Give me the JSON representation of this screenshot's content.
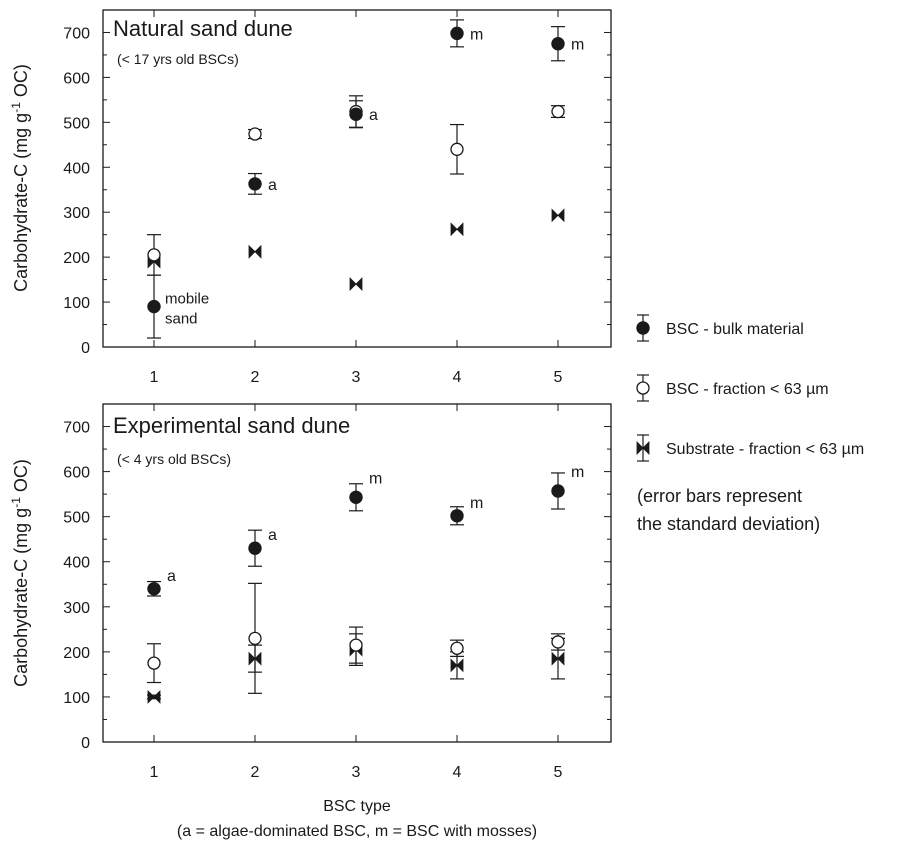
{
  "chart_data": [
    {
      "type": "scatter",
      "title": "Natural sand dune",
      "subtitle": "(< 17 yrs old BSCs)",
      "ylabel": "Carbohydrate-C (mg g",
      "ylabel_sup": "-1",
      "ylabel_tail": " OC)",
      "xlabel": "",
      "categories": [
        1,
        2,
        3,
        4,
        5
      ],
      "ylim": [
        0,
        750
      ],
      "yticks": [
        0,
        100,
        200,
        300,
        400,
        500,
        600,
        700
      ],
      "grid": false,
      "series": [
        {
          "name": "BSC - bulk material",
          "marker": "filled-circle",
          "x": [
            1,
            2,
            3,
            4,
            5
          ],
          "y": [
            90,
            363,
            518,
            698,
            675
          ],
          "err": [
            70,
            23,
            30,
            30,
            38
          ]
        },
        {
          "name": "BSC - fraction < 63 µm",
          "marker": "open-circle",
          "x": [
            1,
            2,
            3,
            4,
            5
          ],
          "y": [
            205,
            474,
            524,
            440,
            524
          ],
          "err": [
            45,
            10,
            35,
            55,
            13
          ]
        },
        {
          "name": "Substrate - fraction < 63 µm",
          "marker": "bowtie",
          "x": [
            1,
            2,
            3,
            4,
            5
          ],
          "y": [
            190,
            212,
            140,
            262,
            293
          ],
          "err": [
            0,
            0,
            0,
            0,
            0
          ]
        }
      ],
      "annotations": [
        {
          "x": 1,
          "y": 90,
          "series": 0,
          "text": "mobile\nsand"
        },
        {
          "x": 2,
          "y": 363,
          "series": 0,
          "text": "a"
        },
        {
          "x": 3,
          "y": 518,
          "series": 0,
          "text": "a"
        },
        {
          "x": 4,
          "y": 698,
          "series": 0,
          "text": "m"
        },
        {
          "x": 5,
          "y": 675,
          "series": 0,
          "text": "m"
        }
      ]
    },
    {
      "type": "scatter",
      "title": "Experimental sand dune",
      "subtitle": "(< 4 yrs old BSCs)",
      "ylabel": "Carbohydrate-C (mg g",
      "ylabel_sup": "-1",
      "ylabel_tail": " OC)",
      "xlabel": "BSC type",
      "xlabel_note": "(a = algae-dominated BSC, m = BSC with mosses)",
      "categories": [
        1,
        2,
        3,
        4,
        5
      ],
      "ylim": [
        0,
        750
      ],
      "yticks": [
        0,
        100,
        200,
        300,
        400,
        500,
        600,
        700
      ],
      "grid": false,
      "series": [
        {
          "name": "BSC - bulk material",
          "marker": "filled-circle",
          "x": [
            1,
            2,
            3,
            4,
            5
          ],
          "y": [
            340,
            430,
            543,
            502,
            557
          ],
          "err": [
            16,
            40,
            30,
            20,
            40
          ]
        },
        {
          "name": "BSC - fraction < 63 µm",
          "marker": "open-circle",
          "x": [
            1,
            2,
            3,
            4,
            5
          ],
          "y": [
            175,
            230,
            215,
            208,
            222
          ],
          "err": [
            43,
            122,
            40,
            18,
            18
          ]
        },
        {
          "name": "Substrate - fraction < 63 µm",
          "marker": "bowtie",
          "x": [
            1,
            2,
            3,
            4,
            5
          ],
          "y": [
            100,
            185,
            205,
            170,
            185
          ],
          "err": [
            4,
            30,
            35,
            30,
            45
          ]
        }
      ],
      "annotations": [
        {
          "x": 1,
          "y": 340,
          "series": 0,
          "text": "a"
        },
        {
          "x": 2,
          "y": 430,
          "series": 0,
          "text": "a"
        },
        {
          "x": 3,
          "y": 543,
          "series": 0,
          "text": "m"
        },
        {
          "x": 4,
          "y": 502,
          "series": 0,
          "text": "m"
        },
        {
          "x": 5,
          "y": 557,
          "series": 0,
          "text": "m"
        }
      ]
    }
  ],
  "legend": {
    "placement": "right",
    "entries": [
      "BSC - bulk material",
      "BSC - fraction < 63 µm",
      "Substrate - fraction < 63 µm"
    ],
    "note_line1": "(error bars represent",
    "note_line2": " the standard deviation)"
  }
}
